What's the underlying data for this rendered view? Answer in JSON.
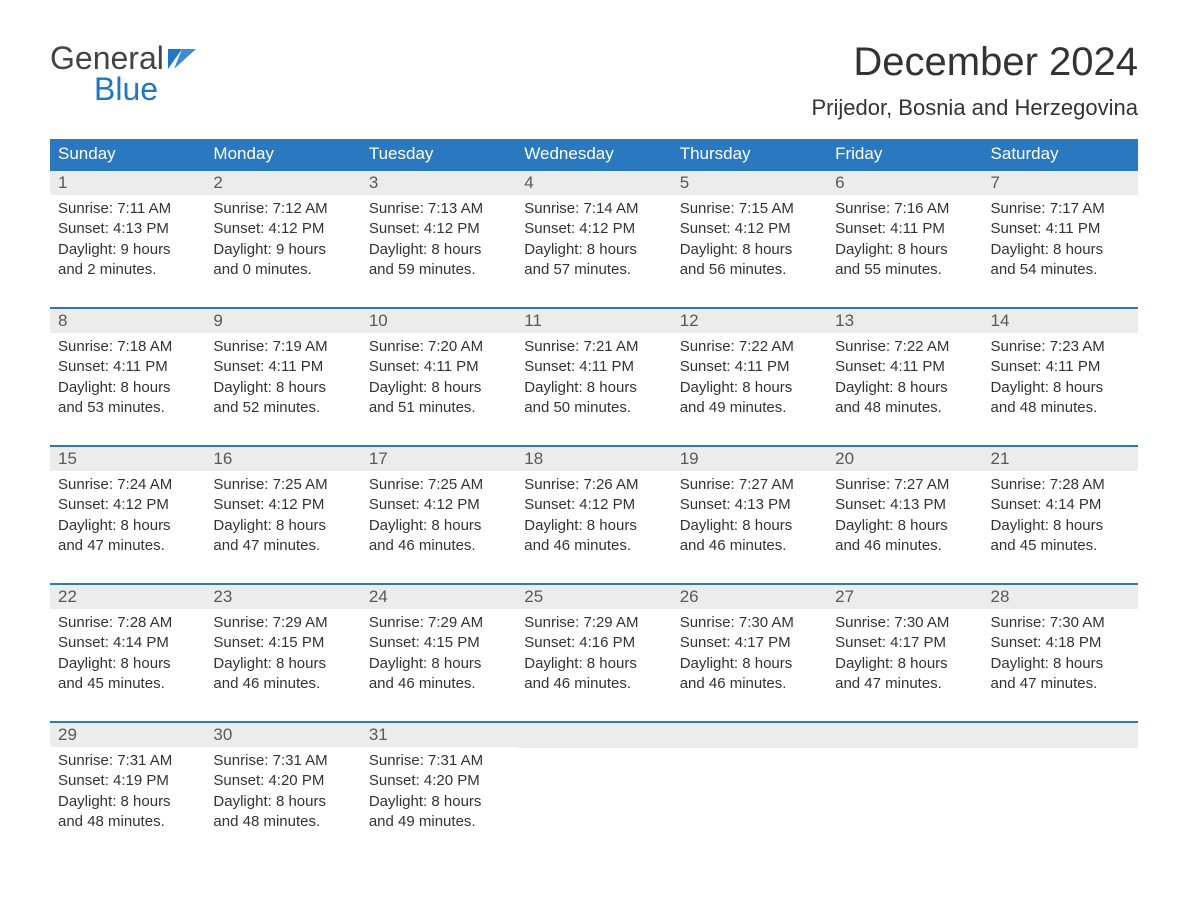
{
  "logo": {
    "text_general": "General",
    "text_blue": "Blue"
  },
  "title": "December 2024",
  "location": "Prijedor, Bosnia and Herzegovina",
  "colors": {
    "header_bg": "#2a78bf",
    "header_text": "#ffffff",
    "week_border": "#2a78bf",
    "daynum_bg": "#ececec",
    "daynum_text": "#595959",
    "body_text": "#333333",
    "logo_gray": "#444444",
    "logo_blue": "#1f76c5",
    "page_bg": "#ffffff"
  },
  "typography": {
    "title_fontsize": 40,
    "location_fontsize": 22,
    "dayhead_fontsize": 17,
    "daynum_fontsize": 17,
    "body_fontsize": 15,
    "logo_fontsize": 32
  },
  "day_headers": [
    "Sunday",
    "Monday",
    "Tuesday",
    "Wednesday",
    "Thursday",
    "Friday",
    "Saturday"
  ],
  "weeks": [
    [
      {
        "n": "1",
        "sunrise": "Sunrise: 7:11 AM",
        "sunset": "Sunset: 4:13 PM",
        "d1": "Daylight: 9 hours",
        "d2": "and 2 minutes."
      },
      {
        "n": "2",
        "sunrise": "Sunrise: 7:12 AM",
        "sunset": "Sunset: 4:12 PM",
        "d1": "Daylight: 9 hours",
        "d2": "and 0 minutes."
      },
      {
        "n": "3",
        "sunrise": "Sunrise: 7:13 AM",
        "sunset": "Sunset: 4:12 PM",
        "d1": "Daylight: 8 hours",
        "d2": "and 59 minutes."
      },
      {
        "n": "4",
        "sunrise": "Sunrise: 7:14 AM",
        "sunset": "Sunset: 4:12 PM",
        "d1": "Daylight: 8 hours",
        "d2": "and 57 minutes."
      },
      {
        "n": "5",
        "sunrise": "Sunrise: 7:15 AM",
        "sunset": "Sunset: 4:12 PM",
        "d1": "Daylight: 8 hours",
        "d2": "and 56 minutes."
      },
      {
        "n": "6",
        "sunrise": "Sunrise: 7:16 AM",
        "sunset": "Sunset: 4:11 PM",
        "d1": "Daylight: 8 hours",
        "d2": "and 55 minutes."
      },
      {
        "n": "7",
        "sunrise": "Sunrise: 7:17 AM",
        "sunset": "Sunset: 4:11 PM",
        "d1": "Daylight: 8 hours",
        "d2": "and 54 minutes."
      }
    ],
    [
      {
        "n": "8",
        "sunrise": "Sunrise: 7:18 AM",
        "sunset": "Sunset: 4:11 PM",
        "d1": "Daylight: 8 hours",
        "d2": "and 53 minutes."
      },
      {
        "n": "9",
        "sunrise": "Sunrise: 7:19 AM",
        "sunset": "Sunset: 4:11 PM",
        "d1": "Daylight: 8 hours",
        "d2": "and 52 minutes."
      },
      {
        "n": "10",
        "sunrise": "Sunrise: 7:20 AM",
        "sunset": "Sunset: 4:11 PM",
        "d1": "Daylight: 8 hours",
        "d2": "and 51 minutes."
      },
      {
        "n": "11",
        "sunrise": "Sunrise: 7:21 AM",
        "sunset": "Sunset: 4:11 PM",
        "d1": "Daylight: 8 hours",
        "d2": "and 50 minutes."
      },
      {
        "n": "12",
        "sunrise": "Sunrise: 7:22 AM",
        "sunset": "Sunset: 4:11 PM",
        "d1": "Daylight: 8 hours",
        "d2": "and 49 minutes."
      },
      {
        "n": "13",
        "sunrise": "Sunrise: 7:22 AM",
        "sunset": "Sunset: 4:11 PM",
        "d1": "Daylight: 8 hours",
        "d2": "and 48 minutes."
      },
      {
        "n": "14",
        "sunrise": "Sunrise: 7:23 AM",
        "sunset": "Sunset: 4:11 PM",
        "d1": "Daylight: 8 hours",
        "d2": "and 48 minutes."
      }
    ],
    [
      {
        "n": "15",
        "sunrise": "Sunrise: 7:24 AM",
        "sunset": "Sunset: 4:12 PM",
        "d1": "Daylight: 8 hours",
        "d2": "and 47 minutes."
      },
      {
        "n": "16",
        "sunrise": "Sunrise: 7:25 AM",
        "sunset": "Sunset: 4:12 PM",
        "d1": "Daylight: 8 hours",
        "d2": "and 47 minutes."
      },
      {
        "n": "17",
        "sunrise": "Sunrise: 7:25 AM",
        "sunset": "Sunset: 4:12 PM",
        "d1": "Daylight: 8 hours",
        "d2": "and 46 minutes."
      },
      {
        "n": "18",
        "sunrise": "Sunrise: 7:26 AM",
        "sunset": "Sunset: 4:12 PM",
        "d1": "Daylight: 8 hours",
        "d2": "and 46 minutes."
      },
      {
        "n": "19",
        "sunrise": "Sunrise: 7:27 AM",
        "sunset": "Sunset: 4:13 PM",
        "d1": "Daylight: 8 hours",
        "d2": "and 46 minutes."
      },
      {
        "n": "20",
        "sunrise": "Sunrise: 7:27 AM",
        "sunset": "Sunset: 4:13 PM",
        "d1": "Daylight: 8 hours",
        "d2": "and 46 minutes."
      },
      {
        "n": "21",
        "sunrise": "Sunrise: 7:28 AM",
        "sunset": "Sunset: 4:14 PM",
        "d1": "Daylight: 8 hours",
        "d2": "and 45 minutes."
      }
    ],
    [
      {
        "n": "22",
        "sunrise": "Sunrise: 7:28 AM",
        "sunset": "Sunset: 4:14 PM",
        "d1": "Daylight: 8 hours",
        "d2": "and 45 minutes."
      },
      {
        "n": "23",
        "sunrise": "Sunrise: 7:29 AM",
        "sunset": "Sunset: 4:15 PM",
        "d1": "Daylight: 8 hours",
        "d2": "and 46 minutes."
      },
      {
        "n": "24",
        "sunrise": "Sunrise: 7:29 AM",
        "sunset": "Sunset: 4:15 PM",
        "d1": "Daylight: 8 hours",
        "d2": "and 46 minutes."
      },
      {
        "n": "25",
        "sunrise": "Sunrise: 7:29 AM",
        "sunset": "Sunset: 4:16 PM",
        "d1": "Daylight: 8 hours",
        "d2": "and 46 minutes."
      },
      {
        "n": "26",
        "sunrise": "Sunrise: 7:30 AM",
        "sunset": "Sunset: 4:17 PM",
        "d1": "Daylight: 8 hours",
        "d2": "and 46 minutes."
      },
      {
        "n": "27",
        "sunrise": "Sunrise: 7:30 AM",
        "sunset": "Sunset: 4:17 PM",
        "d1": "Daylight: 8 hours",
        "d2": "and 47 minutes."
      },
      {
        "n": "28",
        "sunrise": "Sunrise: 7:30 AM",
        "sunset": "Sunset: 4:18 PM",
        "d1": "Daylight: 8 hours",
        "d2": "and 47 minutes."
      }
    ],
    [
      {
        "n": "29",
        "sunrise": "Sunrise: 7:31 AM",
        "sunset": "Sunset: 4:19 PM",
        "d1": "Daylight: 8 hours",
        "d2": "and 48 minutes."
      },
      {
        "n": "30",
        "sunrise": "Sunrise: 7:31 AM",
        "sunset": "Sunset: 4:20 PM",
        "d1": "Daylight: 8 hours",
        "d2": "and 48 minutes."
      },
      {
        "n": "31",
        "sunrise": "Sunrise: 7:31 AM",
        "sunset": "Sunset: 4:20 PM",
        "d1": "Daylight: 8 hours",
        "d2": "and 49 minutes."
      },
      {
        "empty": true
      },
      {
        "empty": true
      },
      {
        "empty": true
      },
      {
        "empty": true
      }
    ]
  ]
}
